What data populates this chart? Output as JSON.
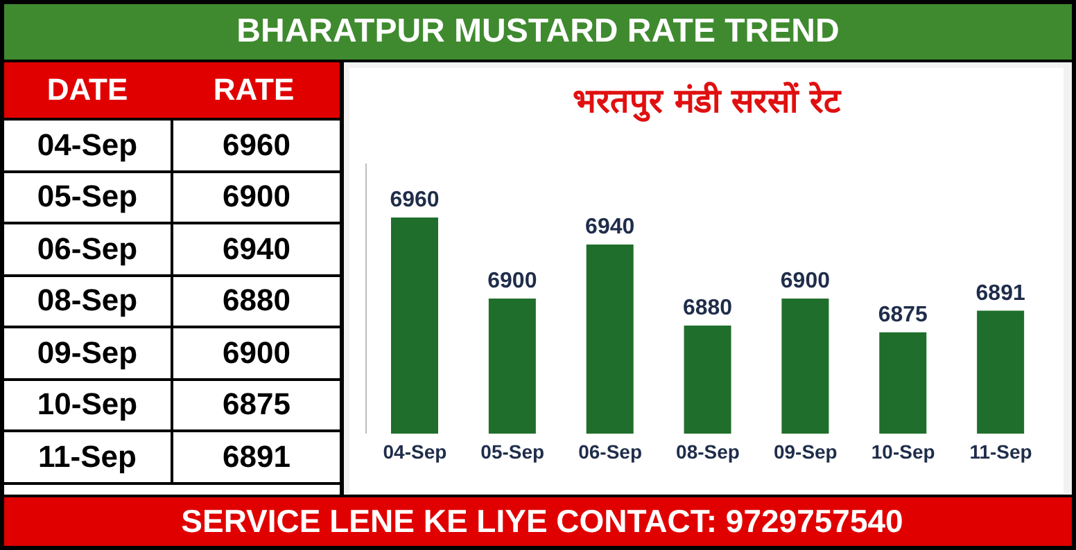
{
  "chart_data": [
    {
      "type": "other",
      "categories": [
        "04-Sep",
        "05-Sep",
        "06-Sep",
        "08-Sep",
        "09-Sep",
        "10-Sep",
        "11-Sep"
      ],
      "values": [
        6960,
        6900,
        6940,
        6880,
        6900,
        6875,
        6891
      ],
      "data_labels": true,
      "annotations": [
        "DATE",
        "RATE"
      ]
    },
    {
      "type": "bar",
      "title": "BHARATPUR MUSTARD RATE TREND",
      "subtitle": "भरतपुर मंडी सरसों रेट",
      "categories": [
        "04-Sep",
        "05-Sep",
        "06-Sep",
        "08-Sep",
        "09-Sep",
        "10-Sep",
        "11-Sep"
      ],
      "values": [
        6960,
        6900,
        6940,
        6880,
        6900,
        6875,
        6891
      ],
      "color": "#1f6e2b",
      "ylim": [
        6800,
        7000
      ],
      "tick_labels": "x",
      "data_labels": true,
      "grid": false,
      "legend": false,
      "annotations": [
        "SERVICE LENE KE LIYE CONTACT: 9729757540"
      ]
    }
  ]
}
